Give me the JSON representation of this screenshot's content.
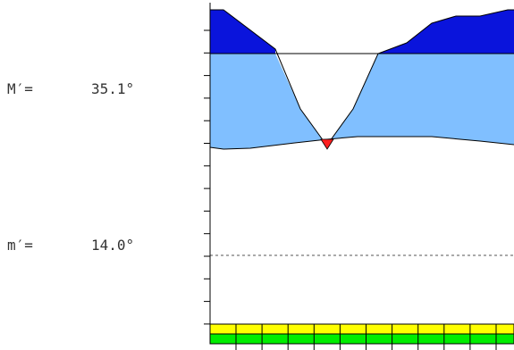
{
  "readouts": {
    "upper": {
      "label": "M′=",
      "value": "35.1°"
    },
    "lower": {
      "label": "m′=",
      "value": "14.0°"
    }
  },
  "colors": {
    "dark_blue": "#0a14dc",
    "light_blue": "#80bfff",
    "red": "#ff2020",
    "yellow": "#ffff00",
    "green": "#00ee00",
    "line": "#000000"
  }
}
